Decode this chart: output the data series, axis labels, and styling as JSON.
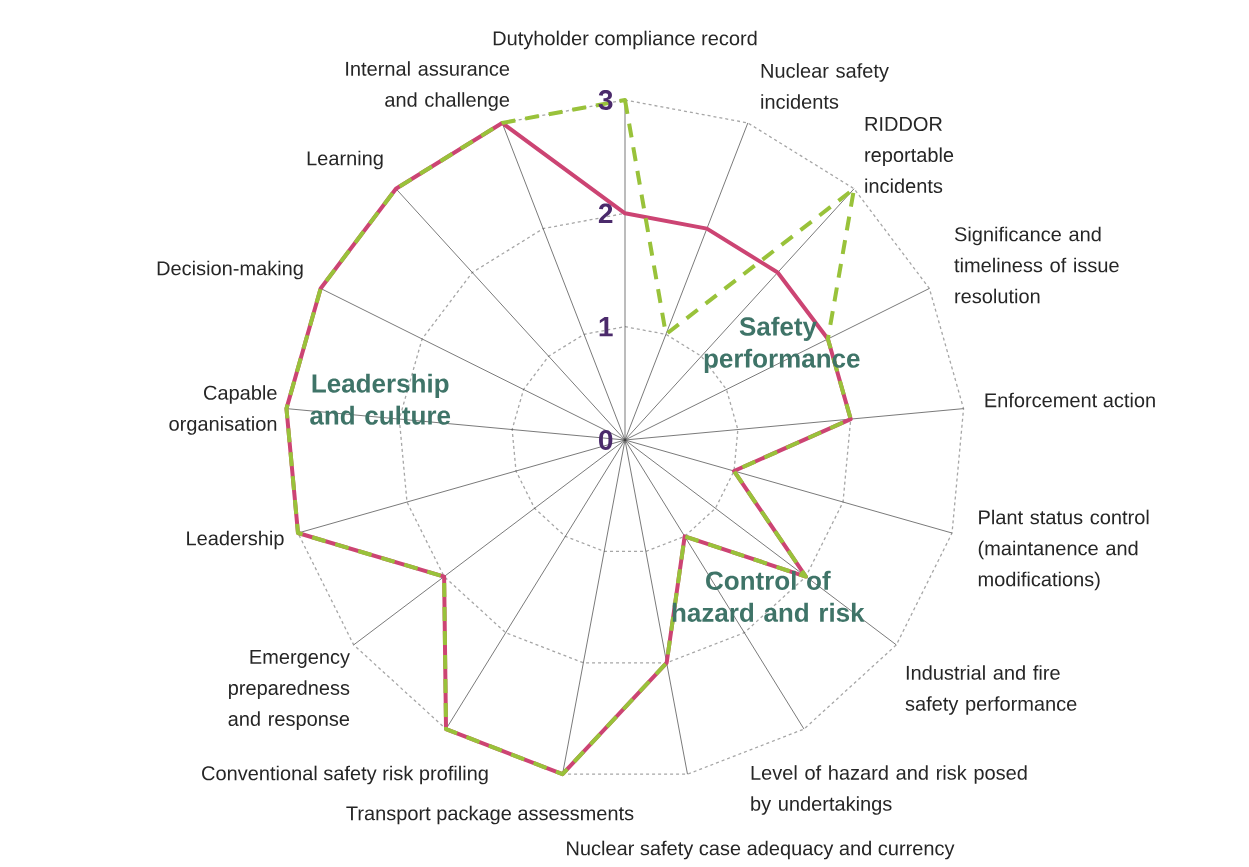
{
  "chart_data": {
    "type": "radar",
    "categories": [
      "Dutyholder compliance record",
      "Nuclear safety incidents",
      "RIDDOR reportable incidents",
      "Significance and timeliness of issue resolution",
      "Enforcement action",
      "Plant status control (maintanence and modifications)",
      "Industrial and fire safety performance",
      "Level of hazard and risk posed by undertakings",
      "Nuclear safety case adequacy and currency",
      "Transport package assessments",
      "Conventional safety risk profiling",
      "Emergency preparedness and response",
      "Leadership",
      "Capable organisation",
      "Decision-making",
      "Learning",
      "Internal assurance and challenge"
    ],
    "series": [
      {
        "color": "#cc4473",
        "values": [
          2,
          2,
          2,
          2,
          2,
          1,
          2,
          1,
          2,
          3,
          3,
          2,
          3,
          3,
          3,
          3,
          3
        ]
      },
      {
        "color": "#99c23a",
        "line_style": "dashed",
        "values": [
          3,
          1,
          3,
          2,
          2,
          1,
          2,
          1,
          2,
          3,
          3,
          2,
          3,
          3,
          3,
          3,
          3
        ]
      }
    ],
    "ylim": [
      0,
      3
    ],
    "yticks": [
      0,
      1,
      2,
      3
    ],
    "grid": true,
    "annotations": [
      "Safety performance",
      "Leadership and culture",
      "Control of hazard and risk"
    ]
  }
}
